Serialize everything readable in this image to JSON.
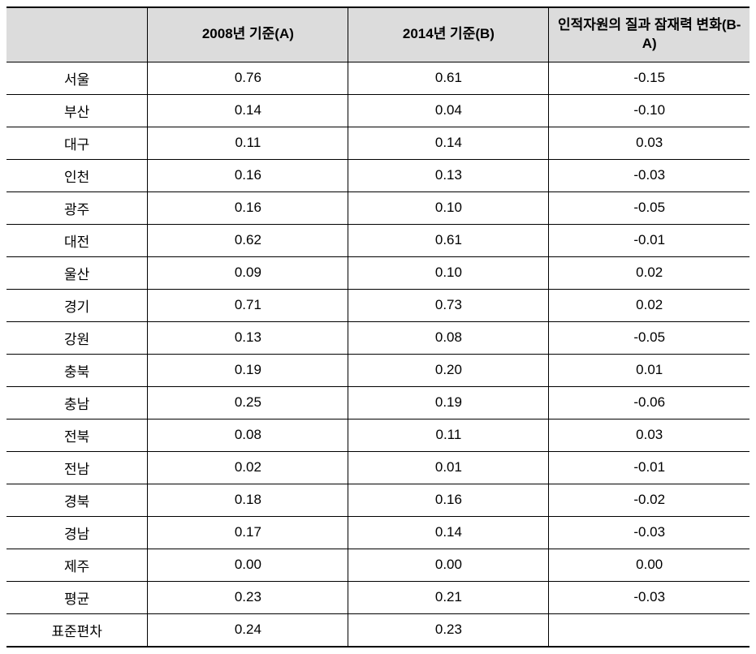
{
  "table": {
    "type": "table",
    "background_color": "#ffffff",
    "header_bg_color": "#dcdcdc",
    "border_color": "#000000",
    "header_fontsize": 17,
    "cell_fontsize": 17,
    "columns": [
      {
        "label": "",
        "width": "19%",
        "align": "center"
      },
      {
        "label": "2008년 기준(A)",
        "width": "27%",
        "align": "center"
      },
      {
        "label": "2014년 기준(B)",
        "width": "27%",
        "align": "center"
      },
      {
        "label": "인적자원의 질과 잠재력 변화(B-A)",
        "width": "27%",
        "align": "center"
      }
    ],
    "rows": [
      {
        "label": "서울",
        "a": "0.76",
        "b": "0.61",
        "diff": "-0.15"
      },
      {
        "label": "부산",
        "a": "0.14",
        "b": "0.04",
        "diff": "-0.10"
      },
      {
        "label": "대구",
        "a": "0.11",
        "b": "0.14",
        "diff": "0.03"
      },
      {
        "label": "인천",
        "a": "0.16",
        "b": "0.13",
        "diff": "-0.03"
      },
      {
        "label": "광주",
        "a": "0.16",
        "b": "0.10",
        "diff": "-0.05"
      },
      {
        "label": "대전",
        "a": "0.62",
        "b": "0.61",
        "diff": "-0.01"
      },
      {
        "label": "울산",
        "a": "0.09",
        "b": "0.10",
        "diff": "0.02"
      },
      {
        "label": "경기",
        "a": "0.71",
        "b": "0.73",
        "diff": "0.02"
      },
      {
        "label": "강원",
        "a": "0.13",
        "b": "0.08",
        "diff": "-0.05"
      },
      {
        "label": "충북",
        "a": "0.19",
        "b": "0.20",
        "diff": "0.01"
      },
      {
        "label": "충남",
        "a": "0.25",
        "b": "0.19",
        "diff": "-0.06"
      },
      {
        "label": "전북",
        "a": "0.08",
        "b": "0.11",
        "diff": "0.03"
      },
      {
        "label": "전남",
        "a": "0.02",
        "b": "0.01",
        "diff": "-0.01"
      },
      {
        "label": "경북",
        "a": "0.18",
        "b": "0.16",
        "diff": "-0.02"
      },
      {
        "label": "경남",
        "a": "0.17",
        "b": "0.14",
        "diff": "-0.03"
      },
      {
        "label": "제주",
        "a": "0.00",
        "b": "0.00",
        "diff": "0.00"
      },
      {
        "label": "평균",
        "a": "0.23",
        "b": "0.21",
        "diff": "-0.03"
      },
      {
        "label": "표준편차",
        "a": "0.24",
        "b": "0.23",
        "diff": ""
      }
    ]
  }
}
